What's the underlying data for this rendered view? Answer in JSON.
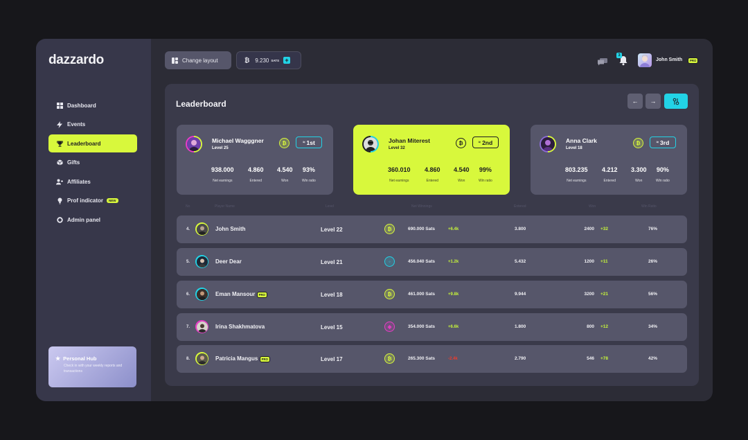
{
  "brand": {
    "logo": "dazzardo"
  },
  "sidebar": {
    "items": [
      {
        "label": "Dashboard",
        "icon": "grid-icon"
      },
      {
        "label": "Events",
        "icon": "bolt-icon"
      },
      {
        "label": "Leaderboard",
        "icon": "trophy-icon",
        "active": true
      },
      {
        "label": "Gifts",
        "icon": "gift-icon"
      },
      {
        "label": "Affiliates",
        "icon": "user-plus-icon"
      },
      {
        "label": "Prof indicator",
        "icon": "bulb-icon",
        "badge": "NEW"
      },
      {
        "label": "Admin panel",
        "icon": "circle-icon"
      }
    ],
    "hub": {
      "title": "Personal Hub",
      "text": "Check in with your weekly reports and transactions"
    }
  },
  "topbar": {
    "layout_label": "Change layout",
    "sats_value": "9.230",
    "sats_unit": "SATS",
    "notifications": "3",
    "user_name": "John Smith",
    "user_badge": "PRO"
  },
  "leaderboard": {
    "title": "Leaderboard",
    "top": [
      {
        "name": "Michael Wagggner",
        "level": "Level 25",
        "rank": "1st",
        "stats": [
          "938.000",
          "4.860",
          "4.540",
          "93%"
        ]
      },
      {
        "name": "Johan Miterest",
        "level": "Level 32",
        "rank": "2nd",
        "stats": [
          "360.010",
          "4.860",
          "4.540",
          "99%"
        ]
      },
      {
        "name": "Anna Clark",
        "level": "Level 18",
        "rank": "3rd",
        "stats": [
          "803.235",
          "4.212",
          "3.300",
          "90%"
        ]
      }
    ],
    "stat_labels": [
      "Net earnings",
      "Entered",
      "Won",
      "Win ratio"
    ],
    "columns": [
      "No",
      "Player Name",
      "Level",
      "Net Winnings",
      "Entered",
      "Won",
      "Win Ratio"
    ],
    "rows": [
      {
        "no": "4.",
        "name": "John Smith",
        "pro": false,
        "level": "Level 22",
        "coin": "btc",
        "winnings": "690.000 Sats",
        "delta": "+6.4k",
        "entered": "3.800",
        "won": "2400",
        "won_delta": "+32",
        "ratio": "76%"
      },
      {
        "no": "5.",
        "name": "Deer Dear",
        "pro": false,
        "level": "Level 21",
        "coin": "cyan",
        "winnings": "456.040 Sats",
        "delta": "+1.2k",
        "entered": "5.432",
        "won": "1200",
        "won_delta": "+11",
        "ratio": "26%"
      },
      {
        "no": "6.",
        "name": "Eman Mansour",
        "pro": true,
        "level": "Level 18",
        "coin": "btc",
        "winnings": "461.000 Sats",
        "delta": "+9.8k",
        "entered": "9.944",
        "won": "3200",
        "won_delta": "+21",
        "ratio": "56%"
      },
      {
        "no": "7.",
        "name": "Irina Shakhmatova",
        "pro": false,
        "level": "Level 15",
        "coin": "pink",
        "winnings": "354.000 Sats",
        "delta": "+6.6k",
        "entered": "1.800",
        "won": "800",
        "won_delta": "+12",
        "ratio": "34%"
      },
      {
        "no": "8.",
        "name": "Patricia Mangus",
        "pro": true,
        "level": "Level 17",
        "coin": "btc",
        "winnings": "265.300 Sats",
        "delta": "-2.4k",
        "entered": "2.790",
        "won": "546",
        "won_delta": "+78",
        "ratio": "42%"
      }
    ],
    "pro_label": "PRO"
  },
  "colors": {
    "accent": "#d8f83c",
    "cyan": "#22d3e6",
    "pink": "#e93cc8",
    "negative": "#ef3b2d"
  }
}
